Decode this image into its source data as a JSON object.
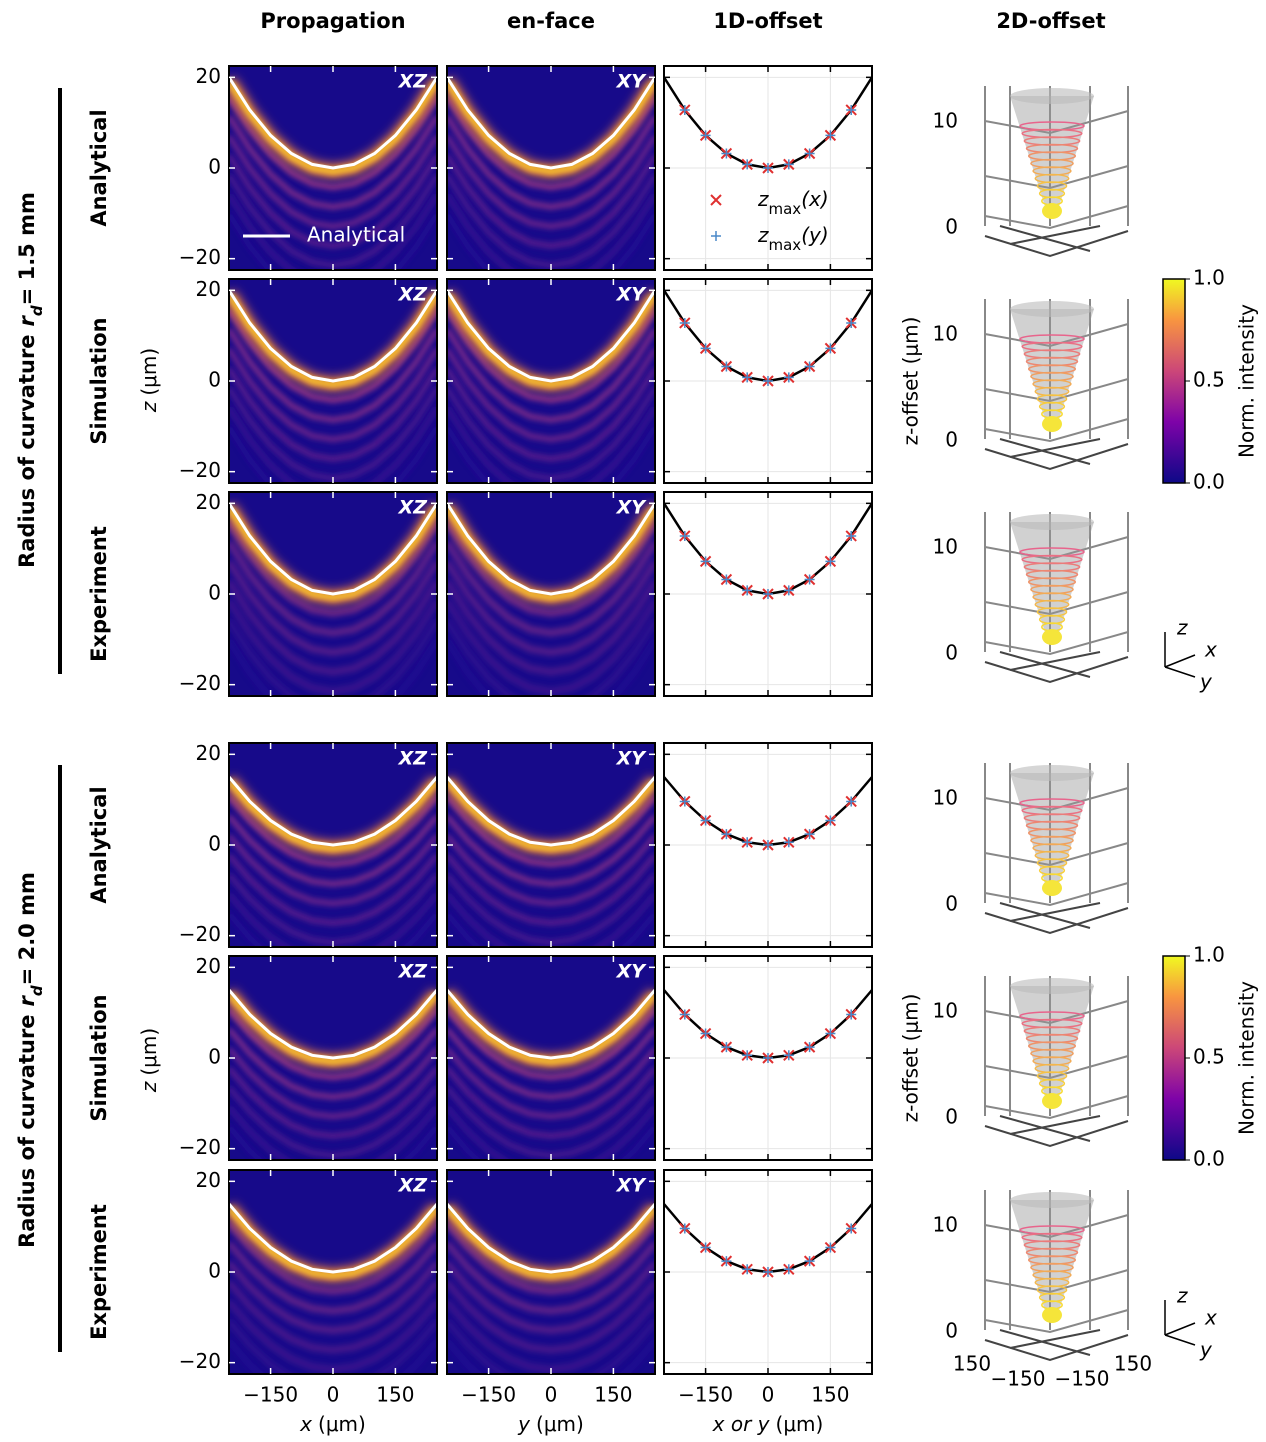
{
  "column_titles": [
    "Propagation",
    "en-face",
    "1D-offset",
    "2D-offset"
  ],
  "row_titles": [
    "Analytical",
    "Simulation",
    "Experiment"
  ],
  "panel_tags": [
    "XZ",
    "XY"
  ],
  "groups": [
    {
      "label": {
        "text": "Radius of curvature",
        "symbol": "r",
        "subscript": "d",
        "value": "= 1.5 mm"
      },
      "analytical_curve": {
        "x": [
          -250,
          -200,
          -150,
          -100,
          -50,
          0,
          50,
          100,
          150,
          200,
          250
        ],
        "z": [
          20,
          12.8,
          7.2,
          3.2,
          0.8,
          0,
          0.8,
          3.2,
          7.2,
          12.8,
          20
        ]
      }
    },
    {
      "label": {
        "text": "Radius of curvature",
        "symbol": "r",
        "subscript": "d",
        "value": "= 2.0 mm"
      },
      "analytical_curve": {
        "x": [
          -250,
          -200,
          -150,
          -100,
          -50,
          0,
          50,
          100,
          150,
          200,
          250
        ],
        "z": [
          15,
          9.6,
          5.4,
          2.4,
          0.6,
          0,
          0.6,
          2.4,
          5.4,
          9.6,
          15
        ]
      }
    }
  ],
  "axes": {
    "xlim": [
      -250,
      250
    ],
    "ylim": [
      -22.5,
      22.5
    ],
    "xticks": [
      {
        "value": -150,
        "label": "−150"
      },
      0,
      150
    ],
    "yticks": [
      20,
      0,
      {
        "value": -20,
        "label": "−20"
      }
    ],
    "ylabel": {
      "symbol": "z",
      "unit": "(μm)"
    },
    "xlabels": [
      {
        "symbol": "x",
        "unit": "(μm)"
      },
      {
        "symbol": "y",
        "unit": "(μm)"
      },
      {
        "symbol": "x or y",
        "unit": "(μm)"
      }
    ]
  },
  "legend": {
    "analytical": "Analytical",
    "zmax_x": {
      "symbol": "z",
      "subscript": "max",
      "arg": "(x)"
    },
    "zmax_y": {
      "symbol": "z",
      "subscript": "max",
      "arg": "(y)"
    }
  },
  "offset_3d": {
    "zticks": [
      10,
      0
    ],
    "zlabel": "z-offset (μm)",
    "base_ticks": [
      150,
      {
        "value": -150,
        "label": "−150"
      },
      {
        "value": -150,
        "label": "−150"
      },
      150
    ]
  },
  "colorbar": {
    "ticks": [
      {
        "value": 1,
        "label": "1.0"
      },
      {
        "value": 0.5,
        "label": "0.5"
      },
      {
        "value": 0,
        "label": "0.0"
      }
    ],
    "label": "Norm. intensity"
  },
  "axis_icon": [
    "z",
    "x",
    "y"
  ]
}
